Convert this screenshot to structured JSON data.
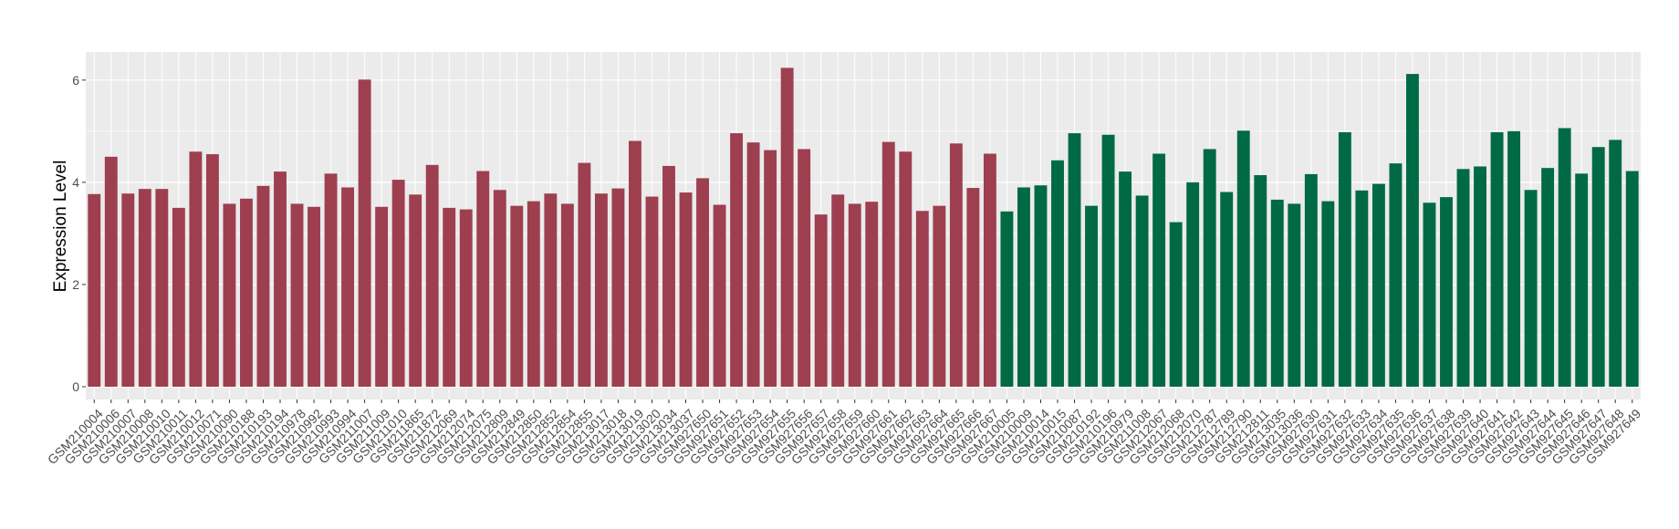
{
  "chart_data": {
    "type": "bar",
    "title": "",
    "xlabel": "",
    "ylabel": "Expression Level",
    "ylim": [
      -0.25,
      6.55
    ],
    "yticks": [
      0,
      2,
      4,
      6
    ],
    "grid": true,
    "legend": "none",
    "colors": {
      "group1": "#9e3f4f",
      "group2": "#006a44",
      "panel_bg": "#ebebeb",
      "grid": "#ffffff"
    },
    "categories": [
      "GSM210004",
      "GSM210006",
      "GSM210007",
      "GSM210008",
      "GSM210010",
      "GSM210011",
      "GSM210012",
      "GSM210071",
      "GSM210090",
      "GSM210188",
      "GSM210193",
      "GSM210194",
      "GSM210978",
      "GSM210992",
      "GSM210993",
      "GSM210994",
      "GSM211007",
      "GSM211009",
      "GSM211010",
      "GSM211865",
      "GSM211872",
      "GSM212069",
      "GSM212074",
      "GSM212075",
      "GSM212809",
      "GSM212849",
      "GSM212850",
      "GSM212852",
      "GSM212854",
      "GSM212855",
      "GSM213017",
      "GSM213018",
      "GSM213019",
      "GSM213020",
      "GSM213034",
      "GSM213037",
      "GSM927650",
      "GSM927651",
      "GSM927652",
      "GSM927653",
      "GSM927654",
      "GSM927655",
      "GSM927656",
      "GSM927657",
      "GSM927658",
      "GSM927659",
      "GSM927660",
      "GSM927661",
      "GSM927662",
      "GSM927663",
      "GSM927664",
      "GSM927665",
      "GSM927666",
      "GSM927667",
      "GSM210005",
      "GSM210009",
      "GSM210014",
      "GSM210015",
      "GSM210087",
      "GSM210192",
      "GSM210196",
      "GSM210979",
      "GSM211008",
      "GSM212067",
      "GSM212068",
      "GSM212070",
      "GSM212787",
      "GSM212789",
      "GSM212790",
      "GSM212811",
      "GSM213035",
      "GSM213036",
      "GSM927630",
      "GSM927631",
      "GSM927632",
      "GSM927633",
      "GSM927634",
      "GSM927635",
      "GSM927636",
      "GSM927637",
      "GSM927638",
      "GSM927639",
      "GSM927640",
      "GSM927641",
      "GSM927642",
      "GSM927643",
      "GSM927644",
      "GSM927645",
      "GSM927646",
      "GSM927647",
      "GSM927648",
      "GSM927649"
    ],
    "values": [
      3.77,
      4.5,
      3.78,
      3.87,
      3.87,
      3.5,
      4.6,
      4.55,
      3.58,
      3.68,
      3.93,
      4.21,
      3.58,
      3.52,
      4.17,
      3.9,
      6.01,
      3.52,
      4.05,
      3.76,
      4.34,
      3.5,
      3.47,
      4.22,
      3.85,
      3.54,
      3.63,
      3.78,
      3.58,
      4.38,
      3.78,
      3.88,
      4.81,
      3.72,
      4.32,
      3.8,
      4.08,
      3.56,
      4.96,
      4.78,
      4.63,
      6.24,
      4.65,
      3.37,
      3.76,
      3.58,
      3.62,
      4.79,
      4.6,
      3.44,
      3.54,
      4.76,
      3.89,
      4.56,
      3.43,
      3.9,
      3.94,
      4.43,
      4.96,
      3.54,
      4.93,
      4.21,
      3.74,
      4.56,
      3.22,
      4.0,
      4.65,
      3.81,
      5.01,
      4.14,
      3.66,
      3.58,
      4.16,
      3.63,
      4.98,
      3.84,
      3.97,
      4.37,
      6.12,
      3.6,
      3.71,
      4.26,
      4.31,
      4.98,
      5.0,
      3.85,
      4.28,
      5.06,
      4.17,
      4.69,
      4.83,
      4.22
    ],
    "groups": [
      1,
      1,
      1,
      1,
      1,
      1,
      1,
      1,
      1,
      1,
      1,
      1,
      1,
      1,
      1,
      1,
      1,
      1,
      1,
      1,
      1,
      1,
      1,
      1,
      1,
      1,
      1,
      1,
      1,
      1,
      1,
      1,
      1,
      1,
      1,
      1,
      1,
      1,
      1,
      1,
      1,
      1,
      1,
      1,
      1,
      1,
      1,
      1,
      1,
      1,
      1,
      1,
      1,
      1,
      2,
      2,
      2,
      2,
      2,
      2,
      2,
      2,
      2,
      2,
      2,
      2,
      2,
      2,
      2,
      2,
      2,
      2,
      2,
      2,
      2,
      2,
      2,
      2,
      2,
      2,
      2,
      2,
      2,
      2,
      2,
      2,
      2,
      2,
      2,
      2,
      2,
      2
    ]
  }
}
